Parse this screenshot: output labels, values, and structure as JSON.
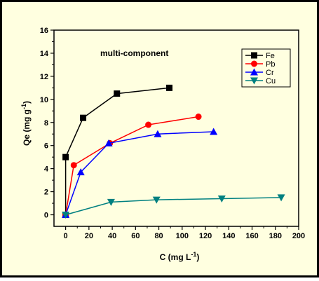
{
  "colors": {
    "background": "#FFFFE0",
    "border": "#000000",
    "axis": "#000000"
  },
  "chart_data": {
    "type": "line",
    "annotation": "multi-component",
    "xlabel": "C (mg L",
    "xlabel_sup": "-1",
    "xlabel_end": ")",
    "ylabel": "Qe (mg g",
    "ylabel_sup": "-1",
    "ylabel_end": ")",
    "xlim": [
      -10,
      200
    ],
    "ylim": [
      -1,
      16
    ],
    "xticks": [
      0,
      20,
      40,
      60,
      80,
      100,
      120,
      140,
      160,
      180,
      200
    ],
    "yticks": [
      0,
      2,
      4,
      6,
      8,
      10,
      12,
      14,
      16
    ],
    "legend_position": "top-right",
    "grid": false,
    "series": [
      {
        "name": "Fe",
        "color": "#000000",
        "marker": "square",
        "x": [
          0,
          0,
          15,
          44,
          89
        ],
        "y": [
          0,
          5.0,
          8.4,
          10.5,
          11.0
        ]
      },
      {
        "name": "Pb",
        "color": "#FF0000",
        "marker": "circle",
        "x": [
          0,
          7,
          38,
          71,
          114
        ],
        "y": [
          0,
          4.3,
          6.2,
          7.8,
          8.5
        ]
      },
      {
        "name": "Cr",
        "color": "#0000FF",
        "marker": "triangle-up",
        "x": [
          0,
          13,
          37,
          79,
          127
        ],
        "y": [
          0,
          3.7,
          6.2,
          7.0,
          7.2
        ]
      },
      {
        "name": "Cu",
        "color": "#008080",
        "marker": "triangle-down",
        "x": [
          0,
          39,
          78,
          134,
          185
        ],
        "y": [
          0,
          1.1,
          1.3,
          1.4,
          1.5
        ]
      }
    ]
  }
}
